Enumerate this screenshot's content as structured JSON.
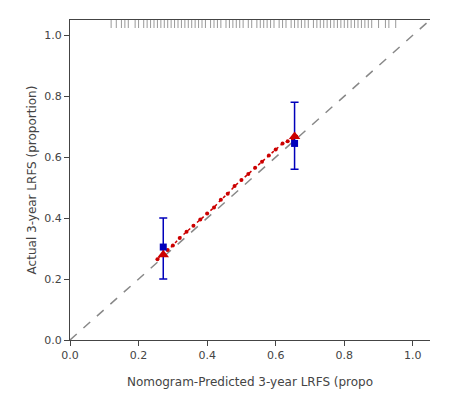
{
  "chart_data": {
    "type": "scatter",
    "xlabel": "Nomogram-Predicted 3-year LRFS (propo",
    "ylabel": "Actual 3-year LRFS (proportion)",
    "xlim": [
      0.0,
      1.05
    ],
    "ylim": [
      0.0,
      1.05
    ],
    "xticks": [
      {
        "value": 0.0,
        "label": "0.0"
      },
      0.2,
      0.4,
      0.6,
      0.8,
      {
        "value": 1.0,
        "label": "1.0"
      }
    ],
    "yticks": [
      {
        "value": 0.0,
        "label": "0.0"
      },
      0.2,
      0.4,
      0.6,
      0.8,
      {
        "value": 1.0,
        "label": "1.0"
      }
    ],
    "grid": false,
    "series": [
      {
        "type": "line",
        "color": "#888888",
        "line_style": "dashed",
        "x": [
          0.0,
          1.05
        ],
        "values": [
          0.0,
          1.05
        ]
      },
      {
        "type": "line",
        "color": "#cc0000",
        "line_style": "dotted",
        "marker": "circle",
        "x": [
          0.255,
          0.27,
          0.285,
          0.3,
          0.32,
          0.34,
          0.36,
          0.38,
          0.4,
          0.42,
          0.44,
          0.46,
          0.48,
          0.5,
          0.52,
          0.54,
          0.56,
          0.58,
          0.6,
          0.62,
          0.635,
          0.65,
          0.66
        ],
        "values": [
          0.265,
          0.28,
          0.295,
          0.31,
          0.335,
          0.355,
          0.375,
          0.395,
          0.415,
          0.435,
          0.46,
          0.48,
          0.505,
          0.525,
          0.545,
          0.565,
          0.585,
          0.605,
          0.625,
          0.645,
          0.652,
          0.66,
          0.668
        ]
      },
      {
        "type": "scatter",
        "color": "#0000bb",
        "marker": "square",
        "x": [
          0.272,
          0.655
        ],
        "values": [
          0.305,
          0.645
        ],
        "error_low": [
          0.105,
          0.085
        ],
        "error_high": [
          0.095,
          0.135
        ]
      },
      {
        "type": "scatter",
        "color": "#cc0000",
        "marker": "triangle-up",
        "x": [
          0.272,
          0.655
        ],
        "values": [
          0.28,
          0.668
        ]
      }
    ],
    "rug_x": [
      0.12,
      0.135,
      0.15,
      0.16,
      0.17,
      0.19,
      0.2,
      0.215,
      0.225,
      0.235,
      0.245,
      0.255,
      0.265,
      0.275,
      0.285,
      0.295,
      0.305,
      0.315,
      0.325,
      0.335,
      0.345,
      0.355,
      0.365,
      0.375,
      0.385,
      0.395,
      0.41,
      0.42,
      0.43,
      0.44,
      0.455,
      0.465,
      0.475,
      0.485,
      0.495,
      0.505,
      0.52,
      0.53,
      0.545,
      0.555,
      0.565,
      0.575,
      0.585,
      0.595,
      0.61,
      0.62,
      0.63,
      0.645,
      0.655,
      0.665,
      0.675,
      0.685,
      0.695,
      0.71,
      0.72,
      0.73,
      0.74,
      0.75,
      0.76,
      0.77,
      0.78,
      0.79,
      0.8,
      0.81,
      0.82,
      0.83,
      0.84,
      0.85,
      0.86,
      0.87,
      0.88,
      0.9,
      0.92,
      0.93,
      0.95
    ]
  }
}
